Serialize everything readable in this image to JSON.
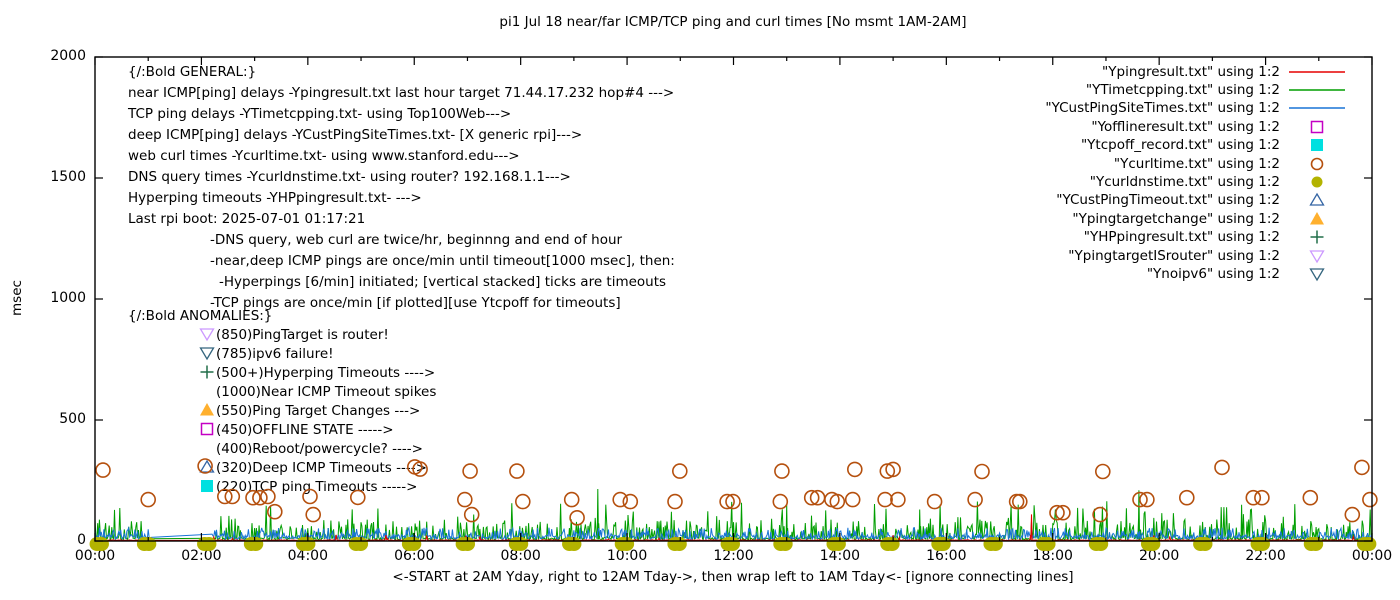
{
  "title": "pi1 Jul 18  near/far ICMP/TCP ping and curl times [No msmt 1AM-2AM]",
  "axes": {
    "ylabel": "msec",
    "xlabel": "<-START at 2AM Yday, right to 12AM Tday->, then wrap left to 1AM Tday<- [ignore connecting lines]",
    "yticks": [
      "0",
      "500",
      "1000",
      "1500",
      "2000"
    ],
    "xticks": [
      "00:00",
      "02:00",
      "04:00",
      "06:00",
      "08:00",
      "10:00",
      "12:00",
      "14:00",
      "16:00",
      "18:00",
      "20:00",
      "22:00",
      "00:00"
    ]
  },
  "legend": [
    {
      "label": "\"Ypingresult.txt\" using 1:2",
      "sample": "line",
      "color": "#e60000"
    },
    {
      "label": "\"YTimetcpping.txt\" using 1:2",
      "sample": "line",
      "color": "#009e00"
    },
    {
      "label": "\"YCustPingSiteTimes.txt\" using 1:2",
      "sample": "line",
      "color": "#1874d6"
    },
    {
      "label": "\"Yofflineresult.txt\" using 1:2",
      "sample": "sq-open",
      "color": "#c400c4"
    },
    {
      "label": "\"Ytcpoff_record.txt\" using 1:2",
      "sample": "sq-fill",
      "color": "#00e0e0"
    },
    {
      "label": "\"Ycurltime.txt\" using 1:2",
      "sample": "circ-open",
      "color": "#b5500e"
    },
    {
      "label": "\"Ycurldnstime.txt\" using 1:2",
      "sample": "circ-fill",
      "color": "#b3b300"
    },
    {
      "label": "\"YCustPingTimeout.txt\" using 1:2",
      "sample": "tri-up-open",
      "color": "#3465a4"
    },
    {
      "label": "\"Ypingtargetchange\" using 1:2",
      "sample": "tri-up-fill",
      "color": "#ffb02e"
    },
    {
      "label": "\"YHPpingresult.txt\" using 1:2",
      "sample": "plus",
      "color": "#206e48"
    },
    {
      "label": "\"YpingtargetISrouter\" using 1:2",
      "sample": "tri-down-open",
      "color": "#cc99ff"
    },
    {
      "label": "\"Ynoipv6\" using 1:2",
      "sample": "tri-down-open",
      "color": "#34657e"
    }
  ],
  "general": {
    "header": "{/:Bold GENERAL:}",
    "lines": [
      {
        "text": "near ICMP[ping] delays -Ypingresult.txt last hour target 71.44.17.232 hop#4 --->",
        "indent": 0
      },
      {
        "text": "TCP ping delays -YTimetcpping.txt- using Top100Web--->",
        "indent": 0
      },
      {
        "text": "deep ICMP[ping] delays -YCustPingSiteTimes.txt- [X generic rpi]--->",
        "indent": 0
      },
      {
        "text": "web curl times -Ycurltime.txt- using www.stanford.edu--->",
        "indent": 0
      },
      {
        "text": "DNS query times -Ycurldnstime.txt- using router? 192.168.1.1--->",
        "indent": 0
      },
      {
        "text": "Hyperping timeouts -YHPpingresult.txt- --->",
        "indent": 0
      },
      {
        "text": "Last rpi boot: 2025-07-01 01:17:21",
        "indent": 0
      },
      {
        "text": "-DNS query, web curl are twice/hr, beginnng and end of hour",
        "indent": 82
      },
      {
        "text": "-near,deep ICMP pings are once/min until timeout[1000 msec], then:",
        "indent": 82
      },
      {
        "text": "-Hyperpings [6/min] initiated; [vertical stacked] ticks are timeouts",
        "indent": 91
      },
      {
        "text": "-TCP pings are once/min [if plotted][use Ytcpoff for timeouts]",
        "indent": 82
      }
    ]
  },
  "anomalies": {
    "header": "{/:Bold ANOMALIES:}",
    "items": [
      {
        "marker": "tri-down-open",
        "color": "#cc99ff",
        "text": "(850)PingTarget is router!"
      },
      {
        "marker": "tri-down-open",
        "color": "#34657e",
        "text": "(785)ipv6 failure!"
      },
      {
        "marker": "plus",
        "color": "#206e48",
        "text": "(500+)Hyperping Timeouts ---->"
      },
      {
        "marker": "none",
        "color": "",
        "text": "(1000)Near ICMP Timeout spikes"
      },
      {
        "marker": "tri-up-fill",
        "color": "#ffb02e",
        "text": "(550)Ping Target Changes --->"
      },
      {
        "marker": "sq-open",
        "color": "#c400c4",
        "text": "(450)OFFLINE STATE ----->"
      },
      {
        "marker": "none",
        "color": "",
        "text": "(400)Reboot/powercycle? ---->"
      },
      {
        "marker": "tri-up-open",
        "color": "#3465a4",
        "text": "(320)Deep ICMP Timeouts ---->"
      },
      {
        "marker": "sq-fill",
        "color": "#00e0e0",
        "text": "(220)TCP ping Timeouts ----->"
      }
    ]
  },
  "chart_data": {
    "type": "line",
    "title": "pi1 Jul 18  near/far ICMP/TCP ping and curl times [No msmt 1AM-2AM]",
    "xlabel": "<-START at 2AM Yday, right to 12AM Tday->, then wrap left to 1AM Tday<- [ignore connecting lines]",
    "ylabel": "msec",
    "ylim": [
      0,
      2000
    ],
    "x_hours": [
      0,
      24
    ],
    "xtick_step_hours": 2,
    "ytick_step": 500,
    "grid": false,
    "legend_position": "top-right-inside",
    "gap_hours": [
      1.05,
      2.2
    ],
    "noise_series": [
      {
        "name": "Ypingresult.txt",
        "color": "#e60000",
        "seed": 11,
        "base": [
          2,
          5
        ],
        "spike_prob": 0.015,
        "spike": [
          8,
          28
        ]
      },
      {
        "name": "YTimetcpping.txt",
        "color": "#009e00",
        "seed": 7,
        "base": [
          4,
          14
        ],
        "spike_prob": 0.3,
        "spike": [
          20,
          90
        ],
        "spike2_prob": 0.045,
        "spike2": [
          90,
          165
        ]
      },
      {
        "name": "YCustPingSiteTimes.txt",
        "color": "#1874d6",
        "seed": 23,
        "base": [
          7,
          24
        ],
        "spike_prob": 0.25,
        "spike": [
          24,
          55
        ]
      }
    ],
    "big_spikes": [
      {
        "series": 1,
        "h": 9.45,
        "msec": 215
      },
      {
        "series": 1,
        "h": 13.0,
        "msec": 150
      },
      {
        "series": 1,
        "h": 15.5,
        "msec": 130
      },
      {
        "series": 1,
        "h": 19.62,
        "msec": 210
      },
      {
        "series": 1,
        "h": 21.55,
        "msec": 150
      },
      {
        "series": 0,
        "h": 17.6,
        "msec": 110
      }
    ],
    "curl_points": [
      [
        0.15,
        293
      ],
      [
        1.0,
        171
      ],
      [
        2.07,
        310
      ],
      [
        2.44,
        184
      ],
      [
        2.58,
        184
      ],
      [
        2.97,
        179
      ],
      [
        3.1,
        179
      ],
      [
        3.25,
        184
      ],
      [
        3.38,
        121
      ],
      [
        4.04,
        184
      ],
      [
        4.1,
        109
      ],
      [
        4.94,
        180
      ],
      [
        6.01,
        306
      ],
      [
        6.11,
        297
      ],
      [
        6.95,
        171
      ],
      [
        7.05,
        289
      ],
      [
        7.08,
        109
      ],
      [
        7.93,
        289
      ],
      [
        8.04,
        163
      ],
      [
        8.96,
        171
      ],
      [
        9.06,
        96
      ],
      [
        9.87,
        171
      ],
      [
        10.06,
        163
      ],
      [
        10.9,
        163
      ],
      [
        10.99,
        289
      ],
      [
        11.88,
        163
      ],
      [
        11.99,
        163
      ],
      [
        12.88,
        163
      ],
      [
        12.91,
        289
      ],
      [
        13.47,
        179
      ],
      [
        13.58,
        179
      ],
      [
        13.85,
        171
      ],
      [
        13.95,
        163
      ],
      [
        14.24,
        171
      ],
      [
        14.28,
        296
      ],
      [
        14.85,
        171
      ],
      [
        14.89,
        289
      ],
      [
        15.0,
        296
      ],
      [
        15.09,
        171
      ],
      [
        15.78,
        163
      ],
      [
        16.54,
        171
      ],
      [
        16.67,
        287
      ],
      [
        17.32,
        163
      ],
      [
        17.38,
        163
      ],
      [
        18.08,
        117
      ],
      [
        18.19,
        117
      ],
      [
        18.89,
        109
      ],
      [
        18.94,
        287
      ],
      [
        19.64,
        171
      ],
      [
        19.77,
        171
      ],
      [
        20.52,
        179
      ],
      [
        21.18,
        304
      ],
      [
        21.77,
        179
      ],
      [
        21.93,
        179
      ],
      [
        22.84,
        179
      ],
      [
        23.63,
        109
      ],
      [
        23.81,
        304
      ],
      [
        23.96,
        171
      ]
    ],
    "dns_hours": [
      0.08,
      0.97,
      2.1,
      2.98,
      3.96,
      4.95,
      5.95,
      6.96,
      7.96,
      8.96,
      9.95,
      10.94,
      11.94,
      12.93,
      13.93,
      14.94,
      15.9,
      16.88,
      17.87,
      18.86,
      19.84,
      20.82,
      21.9,
      22.9,
      23.9
    ],
    "marker_colors": {
      "curl_circle": "#b5500e",
      "dns_circle": "#b3b300"
    }
  }
}
